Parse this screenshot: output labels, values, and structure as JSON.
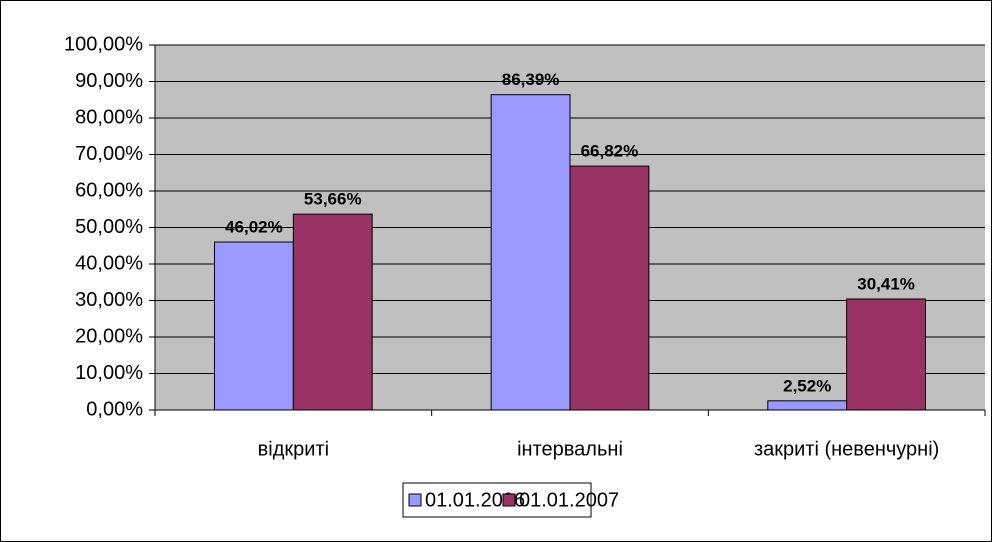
{
  "chart_data": {
    "type": "bar",
    "categories": [
      "відкриті",
      "інтервальні",
      "закриті (невенчурні)"
    ],
    "series": [
      {
        "name": "01.01.2006",
        "color": "#9999ff",
        "values": [
          46.02,
          86.39,
          2.52
        ],
        "value_labels": [
          "46,02%",
          "86,39%",
          "2,52%"
        ]
      },
      {
        "name": "01.01.2007",
        "color": "#993366",
        "values": [
          53.66,
          66.82,
          30.41
        ],
        "value_labels": [
          "53,66%",
          "66,82%",
          "30,41%"
        ]
      }
    ],
    "ylim": [
      0,
      100
    ],
    "yticks": [
      {
        "value": 0,
        "label": "0,00%"
      },
      {
        "value": 10,
        "label": "10,00%"
      },
      {
        "value": 20,
        "label": "20,00%"
      },
      {
        "value": 30,
        "label": "30,00%"
      },
      {
        "value": 40,
        "label": "40,00%"
      },
      {
        "value": 50,
        "label": "50,00%"
      },
      {
        "value": 60,
        "label": "60,00%"
      },
      {
        "value": 70,
        "label": "70,00%"
      },
      {
        "value": 80,
        "label": "80,00%"
      },
      {
        "value": 90,
        "label": "90,00%"
      },
      {
        "value": 100,
        "label": "100,00%"
      }
    ],
    "grid": true,
    "plot_background": "#c0c0c0",
    "legend": "bottom"
  }
}
